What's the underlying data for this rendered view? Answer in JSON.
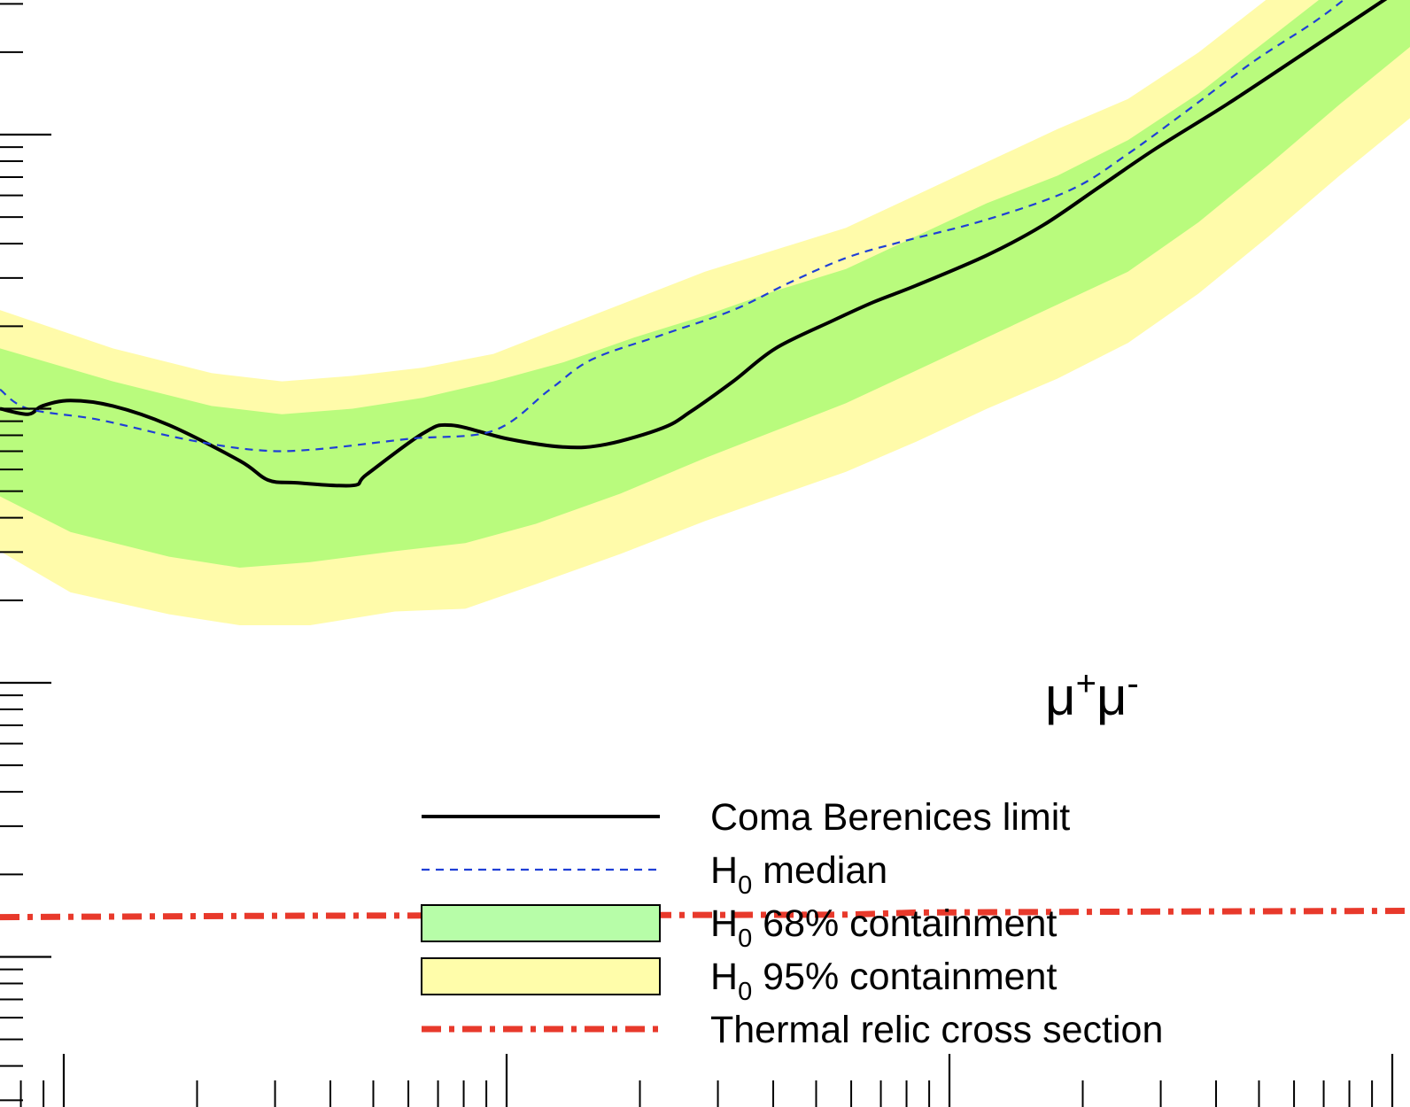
{
  "chart_data": {
    "type": "line",
    "title": "",
    "xlabel": "",
    "ylabel": "",
    "x_scale": "log",
    "y_scale": "log",
    "channel_label": {
      "main": "μ",
      "sup1": "+",
      "main2": "μ",
      "sup2": "-"
    },
    "series": [
      {
        "key": "limit",
        "color": "#000000",
        "style": "solid",
        "points": [
          [
            0.0,
            1.0
          ],
          [
            0.02,
            1.02
          ],
          [
            0.03,
            0.99
          ],
          [
            0.05,
            0.97
          ],
          [
            0.08,
            0.99
          ],
          [
            0.12,
            1.06
          ],
          [
            0.17,
            1.19
          ],
          [
            0.19,
            1.26
          ],
          [
            0.21,
            1.27
          ],
          [
            0.25,
            1.28
          ],
          [
            0.26,
            1.24
          ],
          [
            0.3,
            1.09
          ],
          [
            0.32,
            1.06
          ],
          [
            0.36,
            1.11
          ],
          [
            0.4,
            1.14
          ],
          [
            0.43,
            1.13
          ],
          [
            0.47,
            1.07
          ],
          [
            0.49,
            1.01
          ],
          [
            0.52,
            0.9
          ],
          [
            0.55,
            0.78
          ],
          [
            0.59,
            0.68
          ],
          [
            0.62,
            0.61
          ],
          [
            0.65,
            0.55
          ],
          [
            0.7,
            0.44
          ],
          [
            0.74,
            0.33
          ],
          [
            0.78,
            0.19
          ],
          [
            0.82,
            0.05
          ],
          [
            0.87,
            -0.11
          ],
          [
            0.92,
            -0.28
          ],
          [
            0.99,
            -0.52
          ]
        ]
      },
      {
        "key": "median",
        "color": "#1f3fd6",
        "style": "dashed",
        "points": [
          [
            0.0,
            0.93
          ],
          [
            0.02,
            1.0
          ],
          [
            0.07,
            1.04
          ],
          [
            0.13,
            1.11
          ],
          [
            0.18,
            1.15
          ],
          [
            0.22,
            1.15
          ],
          [
            0.29,
            1.11
          ],
          [
            0.35,
            1.08
          ],
          [
            0.39,
            0.93
          ],
          [
            0.42,
            0.82
          ],
          [
            0.47,
            0.73
          ],
          [
            0.52,
            0.64
          ],
          [
            0.56,
            0.54
          ],
          [
            0.6,
            0.45
          ],
          [
            0.64,
            0.39
          ],
          [
            0.7,
            0.31
          ],
          [
            0.76,
            0.2
          ],
          [
            0.8,
            0.07
          ],
          [
            0.84,
            -0.08
          ],
          [
            0.89,
            -0.27
          ],
          [
            0.94,
            -0.44
          ],
          [
            0.99,
            -0.65
          ]
        ]
      },
      {
        "key": "thermal",
        "color": "#e8392b",
        "style": "dashdot",
        "points": [
          [
            0.0,
            2.855
          ],
          [
            0.2,
            2.85
          ],
          [
            0.4,
            2.848
          ],
          [
            0.6,
            2.846
          ],
          [
            0.65,
            2.838
          ],
          [
            0.8,
            2.835
          ],
          [
            1.0,
            2.832
          ]
        ]
      }
    ],
    "bands": [
      {
        "key": "band95",
        "color": "#fffbaa",
        "upper": [
          [
            0.0,
            0.64
          ],
          [
            0.08,
            0.78
          ],
          [
            0.15,
            0.87
          ],
          [
            0.2,
            0.9
          ],
          [
            0.25,
            0.88
          ],
          [
            0.3,
            0.85
          ],
          [
            0.35,
            0.8
          ],
          [
            0.4,
            0.7
          ],
          [
            0.45,
            0.6
          ],
          [
            0.5,
            0.5
          ],
          [
            0.55,
            0.42
          ],
          [
            0.6,
            0.34
          ],
          [
            0.65,
            0.22
          ],
          [
            0.7,
            0.1
          ],
          [
            0.75,
            -0.02
          ],
          [
            0.8,
            -0.13
          ],
          [
            0.85,
            -0.3
          ],
          [
            0.9,
            -0.5
          ],
          [
            0.95,
            -0.72
          ],
          [
            1.0,
            -0.92
          ]
        ],
        "lower": [
          [
            0.0,
            1.52
          ],
          [
            0.05,
            1.67
          ],
          [
            0.12,
            1.75
          ],
          [
            0.17,
            1.79
          ],
          [
            0.22,
            1.79
          ],
          [
            0.28,
            1.74
          ],
          [
            0.33,
            1.73
          ],
          [
            0.38,
            1.64
          ],
          [
            0.44,
            1.53
          ],
          [
            0.5,
            1.41
          ],
          [
            0.55,
            1.32
          ],
          [
            0.6,
            1.23
          ],
          [
            0.65,
            1.12
          ],
          [
            0.7,
            1.0
          ],
          [
            0.75,
            0.89
          ],
          [
            0.8,
            0.76
          ],
          [
            0.85,
            0.58
          ],
          [
            0.9,
            0.37
          ],
          [
            0.95,
            0.15
          ],
          [
            1.0,
            -0.06
          ]
        ]
      },
      {
        "key": "band68",
        "color": "#b9fb7d",
        "upper": [
          [
            0.0,
            0.78
          ],
          [
            0.08,
            0.9
          ],
          [
            0.15,
            0.99
          ],
          [
            0.2,
            1.02
          ],
          [
            0.25,
            1.0
          ],
          [
            0.3,
            0.96
          ],
          [
            0.35,
            0.9
          ],
          [
            0.4,
            0.83
          ],
          [
            0.45,
            0.74
          ],
          [
            0.5,
            0.66
          ],
          [
            0.55,
            0.57
          ],
          [
            0.6,
            0.49
          ],
          [
            0.65,
            0.37
          ],
          [
            0.7,
            0.25
          ],
          [
            0.75,
            0.15
          ],
          [
            0.8,
            0.02
          ],
          [
            0.85,
            -0.15
          ],
          [
            0.9,
            -0.35
          ],
          [
            0.95,
            -0.55
          ],
          [
            1.0,
            -0.77
          ]
        ],
        "lower": [
          [
            0.0,
            1.32
          ],
          [
            0.05,
            1.45
          ],
          [
            0.12,
            1.54
          ],
          [
            0.17,
            1.58
          ],
          [
            0.22,
            1.56
          ],
          [
            0.28,
            1.52
          ],
          [
            0.33,
            1.49
          ],
          [
            0.38,
            1.42
          ],
          [
            0.44,
            1.31
          ],
          [
            0.5,
            1.18
          ],
          [
            0.55,
            1.08
          ],
          [
            0.6,
            0.98
          ],
          [
            0.65,
            0.86
          ],
          [
            0.7,
            0.74
          ],
          [
            0.75,
            0.62
          ],
          [
            0.8,
            0.5
          ],
          [
            0.85,
            0.32
          ],
          [
            0.9,
            0.11
          ],
          [
            0.95,
            -0.11
          ],
          [
            1.0,
            -0.32
          ]
        ]
      }
    ],
    "legend": {
      "placement": "bottom-center",
      "entries": [
        {
          "key": "limit",
          "label": "Coma Berenices limit",
          "sub": "",
          "rest": ""
        },
        {
          "key": "median",
          "label": "H",
          "sub": "0",
          "rest": " median"
        },
        {
          "key": "band68",
          "label": "H",
          "sub": "0",
          "rest": " 68% containment"
        },
        {
          "key": "band95",
          "label": "H",
          "sub": "0",
          "rest": " 95% containment"
        },
        {
          "key": "thermal",
          "label": "Thermal relic cross section",
          "sub": "",
          "rest": ""
        }
      ]
    }
  }
}
